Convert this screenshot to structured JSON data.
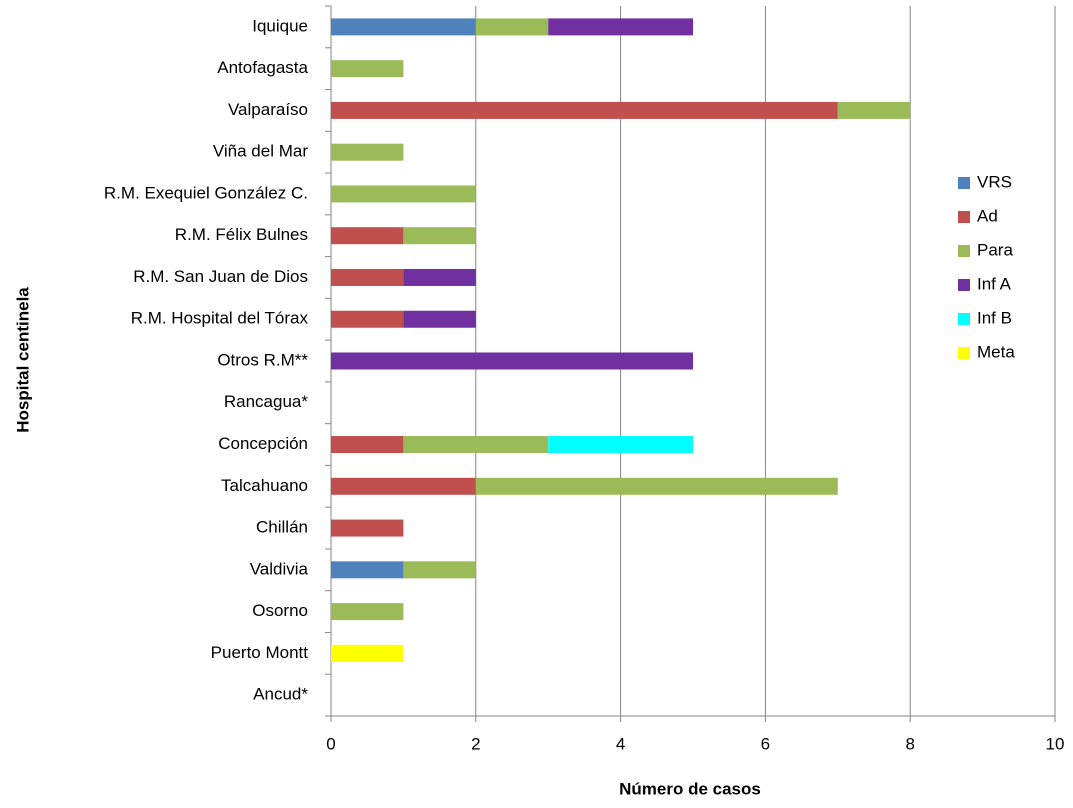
{
  "chart_data": {
    "type": "stacked-barh",
    "x_label": "Número de casos",
    "y_label": "Hospital centinela",
    "categories": [
      "Iquique",
      "Antofagasta",
      "Valparaíso",
      "Viña del Mar",
      "R.M. Exequiel González C.",
      "R.M. Félix Bulnes",
      "R.M. San Juan de Dios",
      "R.M. Hospital del Tórax",
      "Otros R.M**",
      "Rancagua*",
      "Concepción",
      "Talcahuano",
      "Chillán",
      "Valdivia",
      "Osorno",
      "Puerto Montt",
      "Ancud*"
    ],
    "series": [
      {
        "name": "VRS",
        "color": "#4f81bd",
        "values": [
          2,
          0,
          0,
          0,
          0,
          0,
          0,
          0,
          0,
          0,
          0,
          0,
          0,
          1,
          0,
          0,
          0
        ]
      },
      {
        "name": "Ad",
        "color": "#c0504d",
        "values": [
          0,
          0,
          7,
          0,
          0,
          1,
          1,
          1,
          0,
          0,
          1,
          2,
          1,
          0,
          0,
          0,
          0
        ]
      },
      {
        "name": "Para",
        "color": "#9bbb59",
        "values": [
          1,
          1,
          1,
          1,
          2,
          1,
          0,
          0,
          0,
          0,
          2,
          5,
          0,
          1,
          1,
          0,
          0
        ]
      },
      {
        "name": "Inf A",
        "color": "#7030a0",
        "values": [
          2,
          0,
          0,
          0,
          0,
          0,
          1,
          1,
          5,
          0,
          0,
          0,
          0,
          0,
          0,
          0,
          0
        ]
      },
      {
        "name": "Inf B",
        "color": "#00ffff",
        "values": [
          0,
          0,
          0,
          0,
          0,
          0,
          0,
          0,
          0,
          0,
          2,
          0,
          0,
          0,
          0,
          0,
          0
        ]
      },
      {
        "name": "Meta",
        "color": "#ffff00",
        "values": [
          0,
          0,
          0,
          0,
          0,
          0,
          0,
          0,
          0,
          0,
          0,
          0,
          0,
          0,
          0,
          1,
          0
        ]
      }
    ],
    "xlim": [
      0,
      10
    ],
    "xticks": [
      0,
      2,
      4,
      6,
      8,
      10
    ],
    "grid": true
  }
}
